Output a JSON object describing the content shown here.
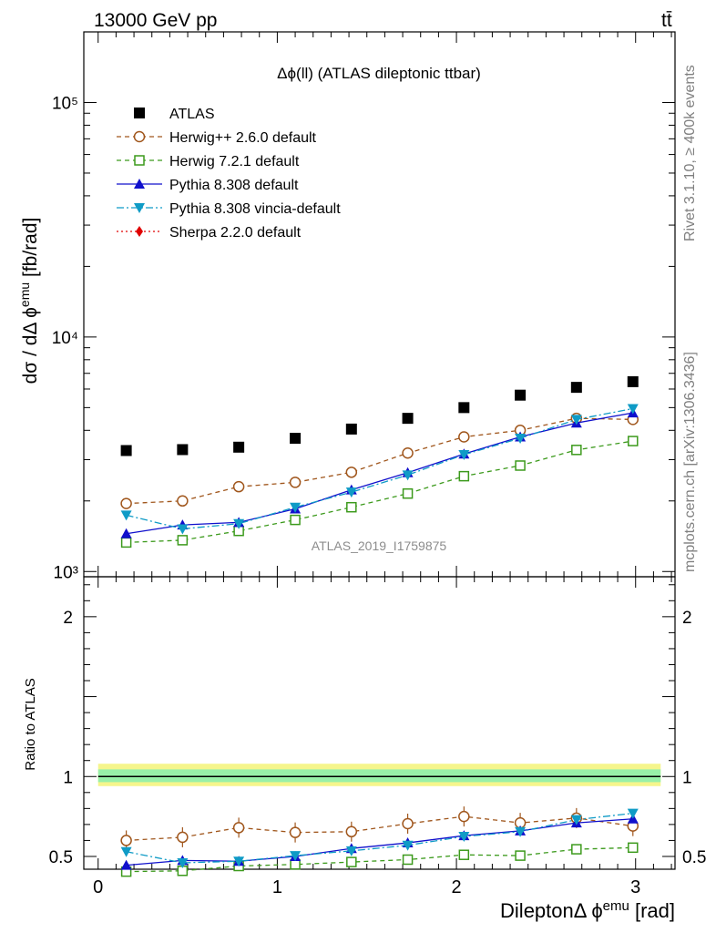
{
  "header": {
    "left": "13000 GeV pp",
    "right": "tt̄"
  },
  "side_labels": {
    "rivet": "Rivet 3.1.10, ≥ 400k events",
    "mcplots": "mcplots.cern.ch [arXiv:1306.3436]"
  },
  "watermark": "ATLAS_2019_I1759875",
  "plot_title": "Δϕ(ll) (ATLAS dileptonic ttbar)",
  "chart_data": [
    {
      "type": "scatter",
      "panel": "main",
      "ylabel": "dσ / dΔϕ^emu [fb/rad]",
      "yscale": "log",
      "ylim": [
        950,
        200000
      ],
      "xlim": [
        -0.08,
        3.22
      ],
      "yticks": [
        {
          "value": 1000,
          "label": "10³"
        },
        {
          "value": 10000,
          "label": "10⁴"
        },
        {
          "value": 100000,
          "label": "10⁵"
        }
      ],
      "x": [
        0.157,
        0.471,
        0.785,
        1.1,
        1.414,
        1.728,
        2.042,
        2.356,
        2.67,
        2.985
      ],
      "legend_placement": "top-left",
      "series": [
        {
          "name": "ATLAS",
          "color": "#000000",
          "marker": "square",
          "line": "none",
          "values": [
            3280,
            3310,
            3390,
            3700,
            4050,
            4500,
            5000,
            5650,
            6100,
            6450
          ]
        },
        {
          "name": "Herwig++ 2.6.0 default",
          "color": "#a0561c",
          "marker": "circle-open",
          "line": "dashed",
          "values": [
            1950,
            2000,
            2300,
            2400,
            2650,
            3200,
            3750,
            4000,
            4500,
            4450
          ]
        },
        {
          "name": "Herwig 7.2.1 default",
          "color": "#3c9a1c",
          "marker": "square-open",
          "line": "dashed",
          "values": [
            1330,
            1360,
            1490,
            1660,
            1880,
            2150,
            2550,
            2830,
            3300,
            3600
          ]
        },
        {
          "name": "Pythia 8.308 default",
          "color": "#1010cc",
          "marker": "triangle-up",
          "line": "solid",
          "values": [
            1450,
            1580,
            1620,
            1850,
            2230,
            2640,
            3170,
            3750,
            4300,
            4750
          ]
        },
        {
          "name": "Pythia 8.308 vincia-default",
          "color": "#0f9bc6",
          "marker": "triangle-down",
          "line": "dashdot",
          "values": [
            1740,
            1520,
            1600,
            1880,
            2180,
            2580,
            3150,
            3700,
            4450,
            4950
          ]
        },
        {
          "name": "Sherpa 2.2.0 default",
          "color": "#e00000",
          "marker": "diamond",
          "line": "dotted",
          "values": []
        }
      ]
    },
    {
      "type": "scatter",
      "panel": "ratio",
      "ylabel": "Ratio to ATLAS",
      "xlabel": "Dilepton Δϕ^emu [rad]",
      "ylim": [
        0.42,
        2.25
      ],
      "xlim": [
        -0.08,
        3.22
      ],
      "xticks": [
        0,
        1,
        2,
        3
      ],
      "yticks": [
        0.5,
        1,
        2
      ],
      "x": [
        0.157,
        0.471,
        0.785,
        1.1,
        1.414,
        1.728,
        2.042,
        2.356,
        2.67,
        2.985
      ],
      "series": [
        {
          "name": "Herwig++ 2.6.0 default",
          "color": "#a0561c",
          "values": [
            0.6,
            0.62,
            0.68,
            0.65,
            0.655,
            0.705,
            0.75,
            0.71,
            0.74,
            0.69
          ]
        },
        {
          "name": "Herwig 7.2.1 default",
          "color": "#3c9a1c",
          "values": [
            0.405,
            0.41,
            0.44,
            0.45,
            0.465,
            0.48,
            0.51,
            0.505,
            0.545,
            0.555
          ]
        },
        {
          "name": "Pythia 8.308 default",
          "color": "#1010cc",
          "values": [
            0.445,
            0.475,
            0.47,
            0.5,
            0.55,
            0.585,
            0.63,
            0.66,
            0.71,
            0.735
          ]
        },
        {
          "name": "Pythia 8.308 vincia-default",
          "color": "#0f9bc6",
          "values": [
            0.53,
            0.46,
            0.47,
            0.505,
            0.535,
            0.57,
            0.625,
            0.655,
            0.73,
            0.77
          ]
        }
      ]
    }
  ]
}
